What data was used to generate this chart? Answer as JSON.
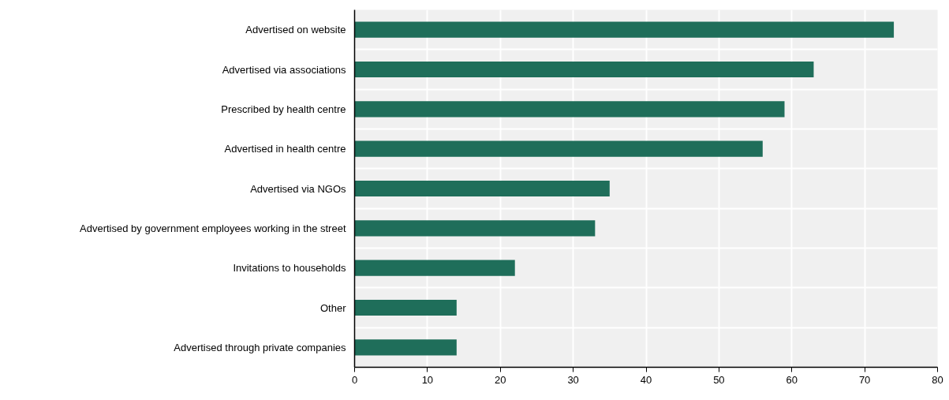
{
  "chart_data": {
    "type": "bar",
    "orientation": "horizontal",
    "categories": [
      "Advertised on website",
      "Advertised via associations",
      "Prescribed by health centre",
      "Advertised in health centre",
      "Advertised via NGOs",
      "Advertised by government employees working in the street",
      "Invitations to households",
      "Other",
      "Advertised through private companies"
    ],
    "values": [
      74,
      63,
      59,
      56,
      35,
      33,
      22,
      14,
      14
    ],
    "color": "#1f6e5a",
    "xlim": [
      0,
      80
    ],
    "xticks": [
      0,
      10,
      20,
      30,
      40,
      50,
      60,
      70,
      80
    ],
    "grid": true
  }
}
